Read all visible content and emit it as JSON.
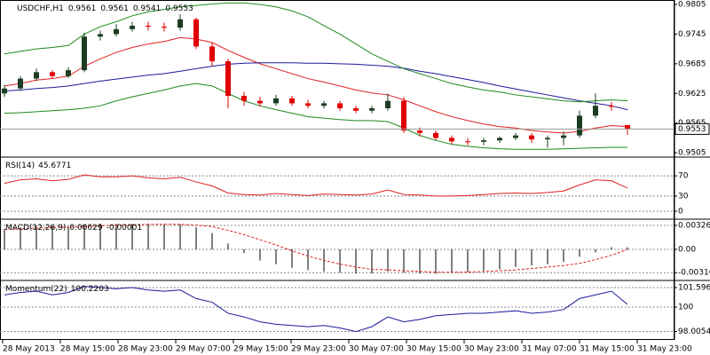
{
  "chart_data": [
    {
      "type": "candlestick",
      "title": "USDCHF,H1",
      "ylim": [
        0.9498,
        0.9814
      ],
      "yticks": [
        0.9805,
        0.9745,
        0.9685,
        0.9625,
        0.9565,
        0.9505
      ],
      "up_color": "#1c3d24",
      "down_color": "#e00000",
      "price_line_color": "#999999",
      "open": [
        0.9625,
        0.9635,
        0.9655,
        0.9668,
        0.966,
        0.9672,
        0.974,
        0.9745,
        0.9755,
        0.9762,
        0.976,
        0.9758,
        0.9775,
        0.972,
        0.969,
        0.962,
        0.961,
        0.9605,
        0.9615,
        0.9605,
        0.96,
        0.9605,
        0.9595,
        0.959,
        0.9595,
        0.961,
        0.955,
        0.9545,
        0.9535,
        0.9528,
        0.9527,
        0.953,
        0.9535,
        0.954,
        0.9532,
        0.9535,
        0.954,
        0.958,
        0.96,
        0.9561
      ],
      "high": [
        0.9642,
        0.966,
        0.9675,
        0.9672,
        0.9678,
        0.9748,
        0.9752,
        0.9765,
        0.977,
        0.977,
        0.9768,
        0.9785,
        0.9778,
        0.9728,
        0.9695,
        0.9628,
        0.9618,
        0.9622,
        0.962,
        0.9612,
        0.961,
        0.961,
        0.96,
        0.96,
        0.9625,
        0.9618,
        0.9556,
        0.955,
        0.954,
        0.9535,
        0.9535,
        0.9538,
        0.9545,
        0.9545,
        0.954,
        0.9548,
        0.959,
        0.9625,
        0.9608,
        0.9561
      ],
      "low": [
        0.9618,
        0.963,
        0.965,
        0.9655,
        0.9656,
        0.9668,
        0.9732,
        0.974,
        0.975,
        0.9752,
        0.975,
        0.9752,
        0.9715,
        0.968,
        0.9595,
        0.96,
        0.9598,
        0.96,
        0.96,
        0.9595,
        0.9595,
        0.959,
        0.9585,
        0.9585,
        0.959,
        0.9545,
        0.9538,
        0.953,
        0.9522,
        0.952,
        0.952,
        0.9525,
        0.953,
        0.9525,
        0.9515,
        0.952,
        0.9535,
        0.9575,
        0.959,
        0.9541
      ],
      "close": [
        0.9635,
        0.9655,
        0.9668,
        0.966,
        0.9672,
        0.974,
        0.9745,
        0.9755,
        0.9762,
        0.976,
        0.9758,
        0.9775,
        0.972,
        0.969,
        0.962,
        0.961,
        0.9605,
        0.9615,
        0.9605,
        0.96,
        0.9605,
        0.9595,
        0.959,
        0.9595,
        0.961,
        0.955,
        0.9545,
        0.9535,
        0.9528,
        0.9527,
        0.953,
        0.9535,
        0.954,
        0.9532,
        0.9535,
        0.954,
        0.958,
        0.96,
        0.9598,
        0.9553
      ],
      "series": [
        {
          "color": "#e02020",
          "values": [
            0.964,
            0.9645,
            0.9652,
            0.9655,
            0.966,
            0.968,
            0.9695,
            0.9708,
            0.9718,
            0.9725,
            0.973,
            0.9738,
            0.9735,
            0.9728,
            0.9712,
            0.9698,
            0.9685,
            0.9675,
            0.9665,
            0.9655,
            0.9648,
            0.964,
            0.9632,
            0.9626,
            0.9622,
            0.9612,
            0.96,
            0.9588,
            0.9578,
            0.957,
            0.9563,
            0.9558,
            0.9555,
            0.955,
            0.9547,
            0.9545,
            0.9548,
            0.9555,
            0.956,
            0.9558
          ]
        },
        {
          "color": "#1a1a9a",
          "values": [
            0.963,
            0.9632,
            0.9635,
            0.9637,
            0.964,
            0.9645,
            0.965,
            0.9654,
            0.9658,
            0.9662,
            0.9665,
            0.967,
            0.9675,
            0.968,
            0.9684,
            0.9686,
            0.9687,
            0.9687,
            0.9687,
            0.9686,
            0.9686,
            0.9685,
            0.9684,
            0.9682,
            0.968,
            0.9676,
            0.967,
            0.9665,
            0.9659,
            0.9653,
            0.9647,
            0.964,
            0.9634,
            0.9628,
            0.9622,
            0.9616,
            0.961,
            0.9605,
            0.96,
            0.9592
          ]
        },
        {
          "color": "#1e8a1e",
          "values": [
            0.9705,
            0.971,
            0.9715,
            0.9718,
            0.9722,
            0.9745,
            0.976,
            0.977,
            0.9782,
            0.979,
            0.9795,
            0.98,
            0.9803,
            0.9806,
            0.9808,
            0.9808,
            0.9805,
            0.98,
            0.9792,
            0.978,
            0.9762,
            0.9745,
            0.9725,
            0.9705,
            0.969,
            0.9675,
            0.9665,
            0.9655,
            0.9645,
            0.9638,
            0.9632,
            0.9628,
            0.9622,
            0.9618,
            0.9614,
            0.961,
            0.9608,
            0.961,
            0.9612,
            0.961
          ]
        },
        {
          "color": "#1e8a1e",
          "values": [
            0.9585,
            0.9586,
            0.9588,
            0.959,
            0.9592,
            0.9595,
            0.96,
            0.961,
            0.9618,
            0.9625,
            0.9632,
            0.964,
            0.9645,
            0.964,
            0.9625,
            0.961,
            0.96,
            0.9592,
            0.9585,
            0.9578,
            0.9575,
            0.9572,
            0.957,
            0.957,
            0.9568,
            0.9555,
            0.954,
            0.953,
            0.9522,
            0.9518,
            0.9515,
            0.9513,
            0.9512,
            0.9512,
            0.9512,
            0.9513,
            0.9514,
            0.9515,
            0.9516,
            0.9516
          ]
        }
      ]
    },
    {
      "type": "line",
      "title": "RSI(14)",
      "ylim": [
        -14,
        107
      ],
      "yticks": [
        70,
        30,
        0
      ],
      "series": [
        {
          "color": "#e02020",
          "values": [
            55,
            62,
            64,
            60,
            63,
            72,
            68,
            68,
            70,
            66,
            64,
            67,
            58,
            50,
            36,
            33,
            32,
            35,
            33,
            31,
            34,
            33,
            32,
            34,
            42,
            33,
            32,
            30,
            30,
            31,
            33,
            35,
            36,
            35,
            37,
            40,
            52,
            62,
            60,
            45.6771
          ]
        }
      ]
    },
    {
      "type": "bar",
      "title": "MACD(12,26,9)",
      "ylim": [
        -0.0041,
        0.0041
      ],
      "yticks": [
        0.00326,
        {
          "value": 0,
          "label": "0.00"
        },
        -0.00316
      ],
      "series": [
        {
          "color": "#000000",
          "values": [
            0.0028,
            0.003,
            0.0032,
            0.0031,
            0.0031,
            0.0034,
            0.0035,
            0.0035,
            0.0035,
            0.0035,
            0.0034,
            0.0034,
            0.003,
            0.0022,
            0.0008,
            -0.0005,
            -0.0015,
            -0.002,
            -0.0025,
            -0.0028,
            -0.003,
            -0.0032,
            -0.0033,
            -0.0033,
            -0.003,
            -0.0032,
            -0.0033,
            -0.0033,
            -0.0032,
            -0.0031,
            -0.0029,
            -0.0027,
            -0.0024,
            -0.0022,
            -0.002,
            -0.0017,
            -0.001,
            -0.0004,
            0.0003,
            0.00029
          ]
        },
        {
          "color": "#e02020",
          "dashed": true,
          "values": [
            0.0027,
            0.0028,
            0.0029,
            0.003,
            0.003,
            0.0031,
            0.0032,
            0.0033,
            0.0033,
            0.0034,
            0.0034,
            0.0034,
            0.0033,
            0.0031,
            0.0026,
            0.002,
            0.0013,
            0.0006,
            -0.0002,
            -0.0009,
            -0.0015,
            -0.002,
            -0.0024,
            -0.0027,
            -0.0028,
            -0.0029,
            -0.003,
            -0.0031,
            -0.0031,
            -0.0031,
            -0.003,
            -0.0029,
            -0.0028,
            -0.0026,
            -0.0024,
            -0.0022,
            -0.0019,
            -0.0014,
            -0.0008,
            -1e-05
          ]
        }
      ]
    },
    {
      "type": "line",
      "title": "Momentum(22)",
      "ylim": [
        97.32,
        102.18
      ],
      "yticks": [
        101.5965,
        100,
        98.0054
      ],
      "series": [
        {
          "color": "#1a1a9a",
          "values": [
            101.0,
            101.2,
            101.3,
            101.0,
            101.2,
            101.7,
            101.6,
            101.5,
            101.6,
            101.4,
            101.3,
            101.4,
            100.7,
            100.4,
            99.5,
            99.2,
            98.8,
            98.6,
            98.5,
            98.4,
            98.5,
            98.3,
            98.0,
            98.4,
            99.2,
            98.8,
            99.0,
            99.3,
            99.4,
            99.5,
            99.5,
            99.6,
            99.7,
            99.5,
            99.6,
            99.8,
            100.7,
            101.0,
            101.3,
            100.2203
          ]
        }
      ]
    }
  ],
  "x_axis": {
    "labels": [
      "28 May 2013",
      "28 May 15:00",
      "28 May 23:00",
      "29 May 07:00",
      "29 May 15:00",
      "29 May 23:00",
      "30 May 07:00",
      "30 May 15:00",
      "30 May 23:00",
      "31 May 07:00",
      "31 May 15:00",
      "31 May 23:00"
    ]
  }
}
